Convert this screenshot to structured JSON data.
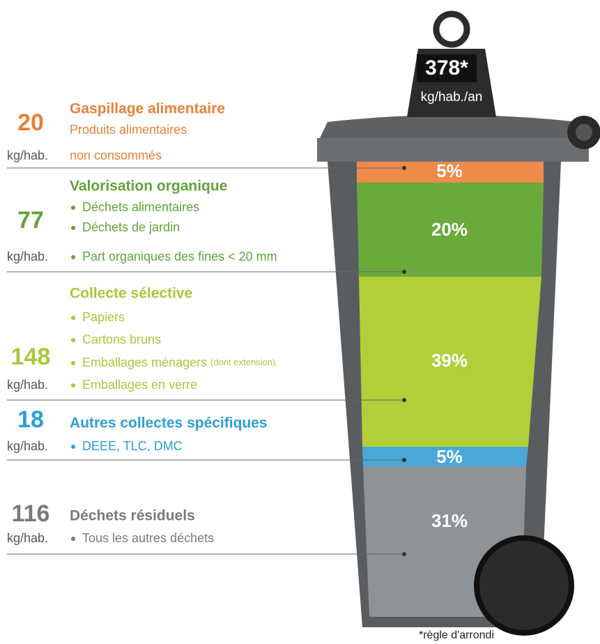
{
  "total": {
    "value": "378*",
    "unit": "kg/hab./an"
  },
  "sections": [
    {
      "amount": "20",
      "unit": "kg/hab.",
      "title": "Gaspillage alimentaire",
      "description": [
        "Produits alimentaires",
        "non consommés"
      ],
      "percent": "5%"
    },
    {
      "amount": "77",
      "unit": "kg/hab.",
      "title": "Valorisation organique",
      "items": [
        "Déchets alimentaires",
        "Déchets de jardin",
        "Part organiques des fines < 20 mm"
      ],
      "percent": "20%"
    },
    {
      "amount": "148",
      "unit": "kg/hab.",
      "title": "Collecte sélective",
      "items": [
        "Papiers",
        "Cartons bruns",
        {
          "text": "Emballages ménagers",
          "note": "(dont extension)"
        },
        "Emballages en verre"
      ],
      "percent": "39%"
    },
    {
      "amount": "18",
      "unit": "kg/hab.",
      "title": "Autres collectes spécifiques",
      "items": [
        "DEEE, TLC, DMC"
      ],
      "percent": "5%"
    },
    {
      "amount": "116",
      "unit": "kg/hab.",
      "title": "Déchets résiduels",
      "items": [
        "Tous les autres déchets"
      ],
      "percent": "31%"
    }
  ],
  "footnote": "*règle d'arrondi"
}
